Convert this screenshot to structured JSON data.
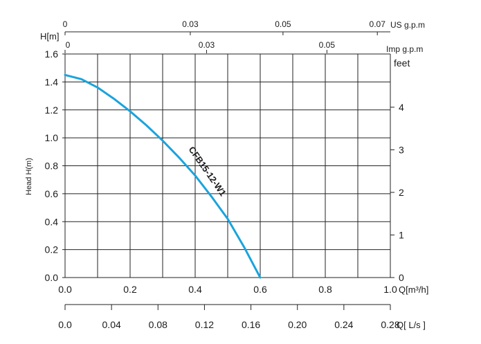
{
  "chart_data": {
    "type": "line",
    "series": [
      {
        "name": "CFB15-12-W1",
        "color": "#1aa3dd",
        "x": [
          0.0,
          0.05,
          0.1,
          0.15,
          0.2,
          0.25,
          0.3,
          0.35,
          0.4,
          0.45,
          0.5,
          0.55,
          0.6
        ],
        "y": [
          1.45,
          1.42,
          1.36,
          1.28,
          1.19,
          1.09,
          0.98,
          0.86,
          0.73,
          0.58,
          0.42,
          0.22,
          0.0
        ]
      }
    ],
    "bottom_axis": {
      "label": "Q[m³/h]",
      "ticks": [
        "0.0",
        "0.2",
        "0.4",
        "0.6",
        "0.8",
        "1.0"
      ],
      "range": [
        0,
        1.0
      ]
    },
    "second_bottom_axis": {
      "label": "Q[ L/s ]",
      "ticks": [
        "0.0",
        "0.04",
        "0.08",
        "0.12",
        "0.16",
        "0.20",
        "0.24",
        "0.28"
      ],
      "range": [
        0,
        0.28
      ]
    },
    "left_axis": {
      "label": "H[m]",
      "side_label": "Head H(m)",
      "ticks": [
        "0.0",
        "0.2",
        "0.4",
        "0.6",
        "0.8",
        "1.0",
        "1.2",
        "1.4",
        "1.6"
      ],
      "range": [
        0,
        1.6
      ]
    },
    "right_axis": {
      "label": "feet",
      "ticks": [
        "0",
        "1",
        "2",
        "3",
        "4"
      ],
      "range_feet": [
        0,
        5.25
      ]
    },
    "top_axis_us": {
      "label": "US g.p.m",
      "ticks": [
        "0",
        "0.03",
        "0.05",
        "0.07"
      ]
    },
    "top_axis_imp": {
      "label": "Imp g.p.m",
      "ticks": [
        "0",
        "0.03",
        "0.05"
      ]
    },
    "grid": true
  }
}
